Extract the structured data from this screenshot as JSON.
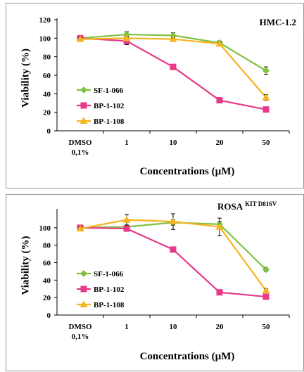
{
  "chart_data": [
    {
      "type": "line",
      "title": "HMC-1.2",
      "title_sup": "",
      "xlabel": "Concentrations (µM)",
      "ylabel": "Viability (%)",
      "categories": [
        [
          "DMSO",
          "0,1%"
        ],
        [
          "1"
        ],
        [
          "10"
        ],
        [
          "20"
        ],
        [
          "50"
        ]
      ],
      "ylim": [
        0,
        120
      ],
      "yticks": [
        0,
        20,
        40,
        60,
        80,
        100,
        120
      ],
      "legend_position": "bottom-left",
      "series": [
        {
          "name": "SF-1-066",
          "color": "#7fc241",
          "marker": "diamond",
          "values": [
            100,
            104,
            103,
            95,
            65
          ],
          "err": [
            2,
            3,
            3,
            2,
            4
          ]
        },
        {
          "name": "BP-1-102",
          "color": "#e8388a",
          "marker": "square",
          "values": [
            100,
            97,
            69,
            33,
            23
          ],
          "err": [
            2,
            4,
            2,
            2,
            2
          ]
        },
        {
          "name": "BP-1-108",
          "color": "#f5b41e",
          "marker": "triangle",
          "values": [
            99,
            100,
            99,
            94,
            36
          ],
          "err": [
            2,
            2,
            2,
            2,
            3
          ]
        }
      ]
    },
    {
      "type": "line",
      "title": "ROSA",
      "title_sup": "KIT D816V",
      "xlabel": "Concentrations (µM)",
      "ylabel": "Viability (%)",
      "categories": [
        [
          "DMSO",
          "0,1%"
        ],
        [
          "1"
        ],
        [
          "10"
        ],
        [
          "20"
        ],
        [
          "50"
        ]
      ],
      "ylim": [
        0,
        120
      ],
      "yticks": [
        0,
        20,
        40,
        60,
        80,
        100
      ],
      "legend_position": "bottom-left",
      "series": [
        {
          "name": "SF-1-066",
          "color": "#7fc241",
          "marker": "diamond",
          "values": [
            100,
            101,
            106,
            104,
            52
          ],
          "err": [
            2,
            2,
            3,
            3,
            2
          ]
        },
        {
          "name": "BP-1-102",
          "color": "#e8388a",
          "marker": "square",
          "values": [
            100,
            99,
            75,
            26,
            21
          ],
          "err": [
            2,
            2,
            2,
            2,
            2
          ]
        },
        {
          "name": "BP-1-108",
          "color": "#f5b41e",
          "marker": "triangle",
          "values": [
            99,
            109,
            107,
            101,
            28
          ],
          "err": [
            2,
            6,
            9,
            10,
            2
          ]
        }
      ]
    }
  ]
}
